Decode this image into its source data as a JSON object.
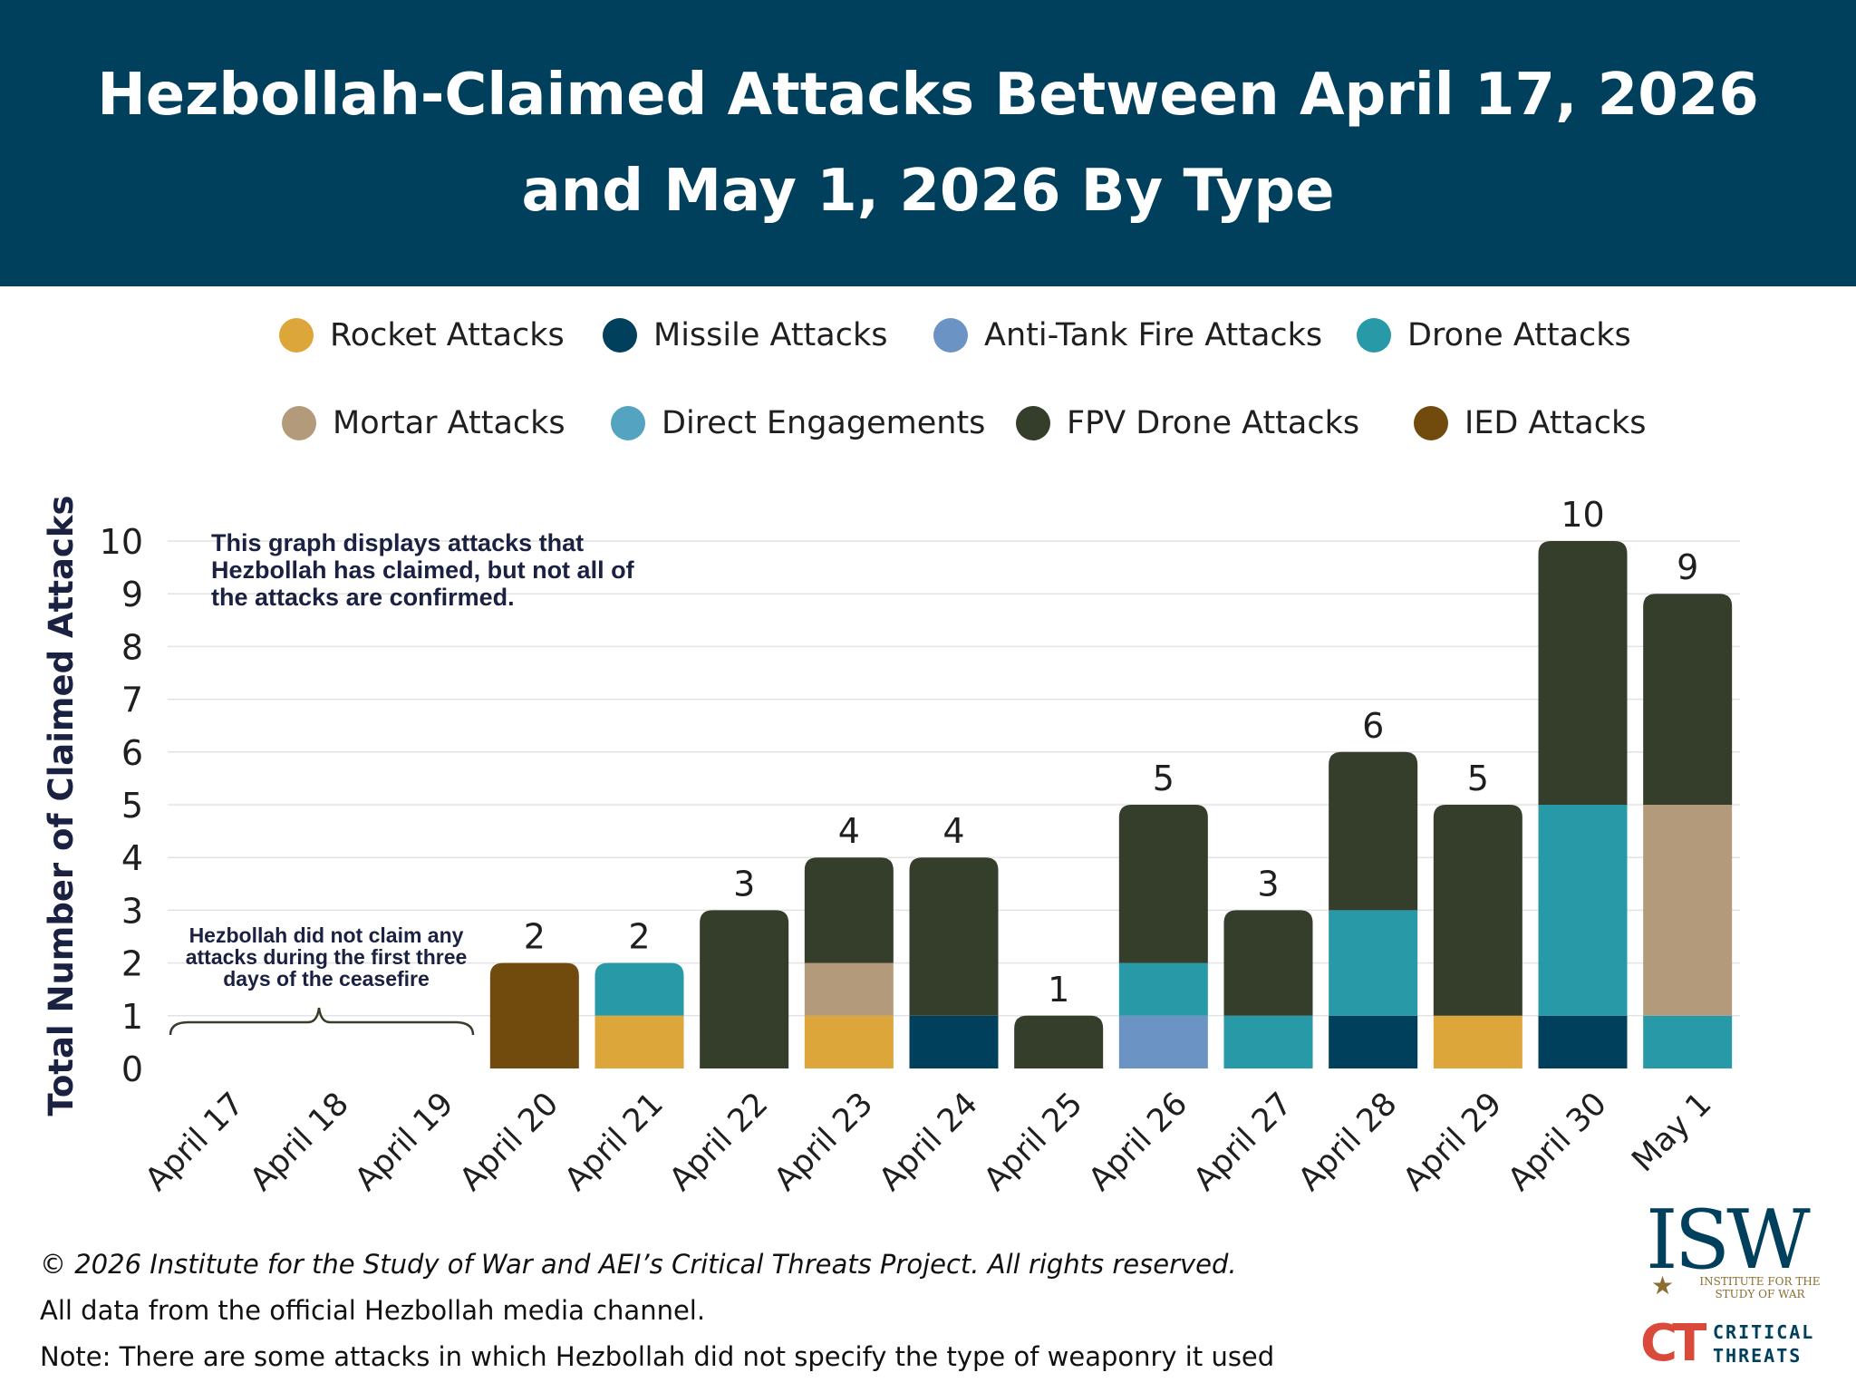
{
  "header": {
    "title": "Hezbollah-Claimed Attacks Between April 17, 2026\nand May 1, 2026 By Type",
    "background": "#00405d"
  },
  "legend": [
    {
      "label": "Rocket Attacks",
      "color": "#dca63a"
    },
    {
      "label": "Missile Attacks",
      "color": "#00405d"
    },
    {
      "label": "Anti-Tank Fire Attacks",
      "color": "#6b93c3"
    },
    {
      "label": "Drone Attacks",
      "color": "#2899a6"
    },
    {
      "label": "Mortar Attacks",
      "color": "#b39a7a"
    },
    {
      "label": "Direct Engagements",
      "color": "#54a4c1"
    },
    {
      "label": "FPV Drone Attacks",
      "color": "#353d2b"
    },
    {
      "label": "IED Attacks",
      "color": "#714b0d"
    }
  ],
  "chart_data": {
    "type": "bar",
    "stacked": true,
    "ylabel": "Total Number of Claimed Attacks",
    "xlabel": "",
    "ylim": [
      0,
      10
    ],
    "yticks": [
      0,
      1,
      2,
      3,
      4,
      5,
      6,
      7,
      8,
      9,
      10
    ],
    "grid": true,
    "categories": [
      "April 17",
      "April 18",
      "April 19",
      "April 20",
      "April 21",
      "April 22",
      "April 23",
      "April 24",
      "April 25",
      "April 26",
      "April 27",
      "April 28",
      "April 29",
      "April 30",
      "May 1"
    ],
    "series": [
      {
        "name": "Rocket Attacks",
        "color": "#dca63a",
        "values": [
          0,
          0,
          0,
          0,
          1,
          0,
          1,
          0,
          0,
          0,
          0,
          0,
          1,
          0,
          0
        ]
      },
      {
        "name": "Missile Attacks",
        "color": "#00405d",
        "values": [
          0,
          0,
          0,
          0,
          0,
          0,
          0,
          1,
          0,
          0,
          0,
          1,
          0,
          1,
          0
        ]
      },
      {
        "name": "Anti-Tank Fire Attacks",
        "color": "#6b93c3",
        "values": [
          0,
          0,
          0,
          0,
          0,
          0,
          0,
          0,
          0,
          1,
          0,
          0,
          0,
          0,
          0
        ]
      },
      {
        "name": "Drone Attacks",
        "color": "#2899a6",
        "values": [
          0,
          0,
          0,
          0,
          1,
          0,
          0,
          0,
          0,
          1,
          1,
          2,
          0,
          4,
          1
        ]
      },
      {
        "name": "Mortar Attacks",
        "color": "#b39a7a",
        "values": [
          0,
          0,
          0,
          0,
          0,
          0,
          1,
          0,
          0,
          0,
          0,
          0,
          0,
          0,
          4
        ]
      },
      {
        "name": "Direct Engagements",
        "color": "#54a4c1",
        "values": [
          0,
          0,
          0,
          0,
          0,
          0,
          0,
          0,
          0,
          0,
          0,
          0,
          0,
          0,
          0
        ]
      },
      {
        "name": "FPV Drone Attacks",
        "color": "#353d2b",
        "values": [
          0,
          0,
          0,
          0,
          0,
          3,
          2,
          3,
          1,
          3,
          2,
          3,
          4,
          5,
          4
        ]
      },
      {
        "name": "IED Attacks",
        "color": "#714b0d",
        "values": [
          0,
          0,
          0,
          2,
          0,
          0,
          0,
          0,
          0,
          0,
          0,
          0,
          0,
          0,
          0
        ]
      }
    ],
    "totals": [
      null,
      null,
      null,
      2,
      2,
      3,
      4,
      4,
      1,
      5,
      3,
      6,
      5,
      10,
      9
    ],
    "annotations": [
      {
        "text": "This graph displays attacks that\nHezbollah has claimed, but not all of\nthe attacks are confirmed."
      },
      {
        "text": "Hezbollah did not claim any\nattacks during the first three\ndays of the ceasefire"
      }
    ]
  },
  "footer": {
    "copyright": "© 2026 Institute for the Study of War and AEI’s Critical Threats Project. All rights reserved.",
    "source": "All data from the official Hezbollah media channel.",
    "note": "Note: There are some attacks in which Hezbollah did not specify the type of weaponry it used"
  },
  "logos": {
    "isw_letters": "ISW",
    "isw_sub": "INSTITUTE FOR THE\nSTUDY OF WAR",
    "ct_mark": "CT",
    "ct_text": "CRITICAL\nTHREATS"
  }
}
